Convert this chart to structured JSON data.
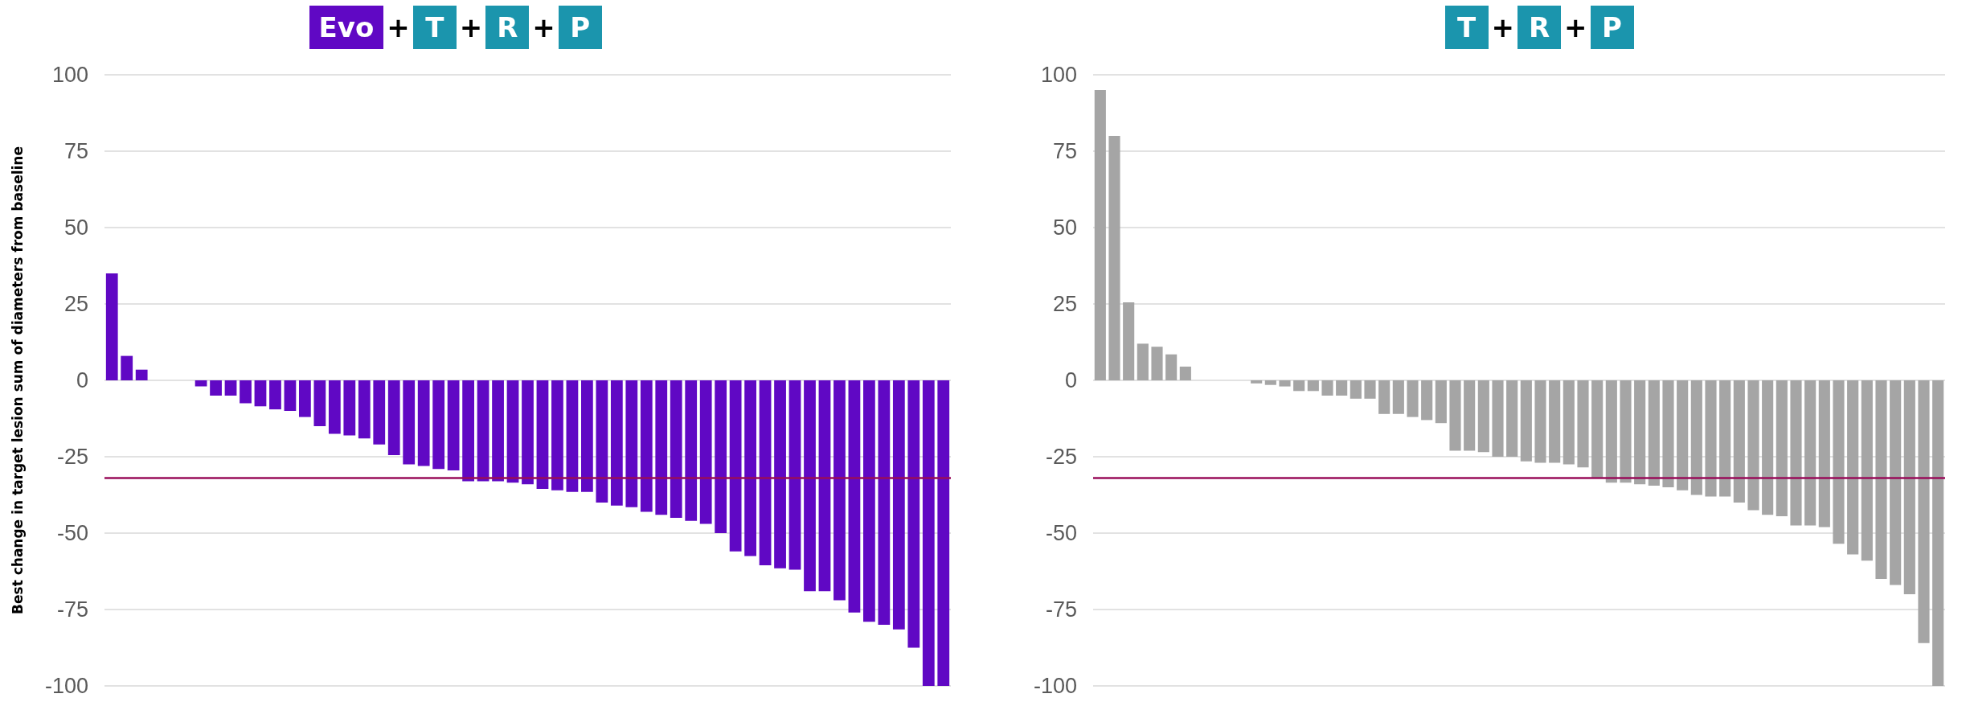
{
  "chart_data": [
    {
      "type": "bar",
      "title": "Evo + T + R + P",
      "ylabel": "Best change in target lesion sum of diameters from baseline",
      "color": "#6008c4",
      "categories": [
        null,
        null,
        null,
        null,
        null,
        null,
        null,
        null,
        null,
        null,
        null,
        null,
        null,
        null,
        null,
        null,
        null,
        null,
        null,
        null,
        null,
        null,
        null,
        null,
        null,
        null,
        null,
        null,
        null,
        null,
        null,
        null,
        null,
        null,
        null,
        null,
        null,
        null,
        null,
        null,
        null,
        null,
        null,
        null,
        null,
        null,
        null,
        null,
        null,
        null,
        null,
        null,
        null,
        null,
        null,
        null,
        null
      ],
      "values": [
        35,
        8,
        3.5,
        0,
        0,
        0,
        -2,
        -5,
        -5,
        -7.5,
        -8.5,
        -9.5,
        -10,
        -12,
        -15,
        -17.5,
        -18,
        -19,
        -21,
        -24.5,
        -27.5,
        -28,
        -29,
        -29.5,
        -33,
        -33,
        -33,
        -33.5,
        -34,
        -35.5,
        -36,
        -36.5,
        -36.5,
        -40,
        -41,
        -41.5,
        -43,
        -44,
        -45,
        -46,
        -47,
        -50,
        -56,
        -57.5,
        -60.5,
        -61.5,
        -62,
        -69,
        -69,
        -72,
        -76,
        -79,
        -80,
        -81.5,
        -87.5,
        -100,
        -100
      ],
      "ylim": [
        -100,
        100
      ],
      "yticks": [
        -100,
        -75,
        -50,
        -25,
        0,
        25,
        50,
        75,
        100
      ],
      "grid": "y",
      "tick_labels": "y",
      "ref_lines": [
        {
          "axis": "y",
          "value": -32,
          "color": "#990d5a"
        }
      ]
    },
    {
      "type": "bar",
      "title": "T + R + P",
      "color": "#a5a5a5",
      "categories": [
        null,
        null,
        null,
        null,
        null,
        null,
        null,
        null,
        null,
        null,
        null,
        null,
        null,
        null,
        null,
        null,
        null,
        null,
        null,
        null,
        null,
        null,
        null,
        null,
        null,
        null,
        null,
        null,
        null,
        null,
        null,
        null,
        null,
        null,
        null,
        null,
        null,
        null,
        null,
        null,
        null,
        null,
        null,
        null,
        null,
        null,
        null,
        null,
        null,
        null,
        null,
        null,
        null,
        null,
        null,
        null,
        null,
        null,
        null,
        null
      ],
      "values": [
        95,
        80,
        25.5,
        12,
        11,
        8.5,
        4.5,
        0,
        0,
        0,
        0,
        -1,
        -1.5,
        -2,
        -3.5,
        -3.5,
        -5,
        -5,
        -6,
        -6,
        -11,
        -11,
        -12,
        -13,
        -14,
        -23,
        -23,
        -23.5,
        -25,
        -25,
        -26.5,
        -27,
        -27,
        -27.5,
        -28.5,
        -32,
        -33.5,
        -33.5,
        -34,
        -34.5,
        -35,
        -36,
        -37.5,
        -38,
        -38,
        -40,
        -42.5,
        -44,
        -44.5,
        -47.5,
        -47.5,
        -48,
        -53.5,
        -57,
        -59,
        -65,
        -67,
        -70,
        -86,
        -100
      ],
      "ylim": [
        -100,
        100
      ],
      "yticks": [
        -100,
        -75,
        -50,
        -25,
        0,
        25,
        50,
        75,
        100
      ],
      "grid": "y",
      "tick_labels": "y",
      "ref_lines": [
        {
          "axis": "y",
          "value": -32,
          "color": "#990d5a"
        }
      ]
    }
  ]
}
